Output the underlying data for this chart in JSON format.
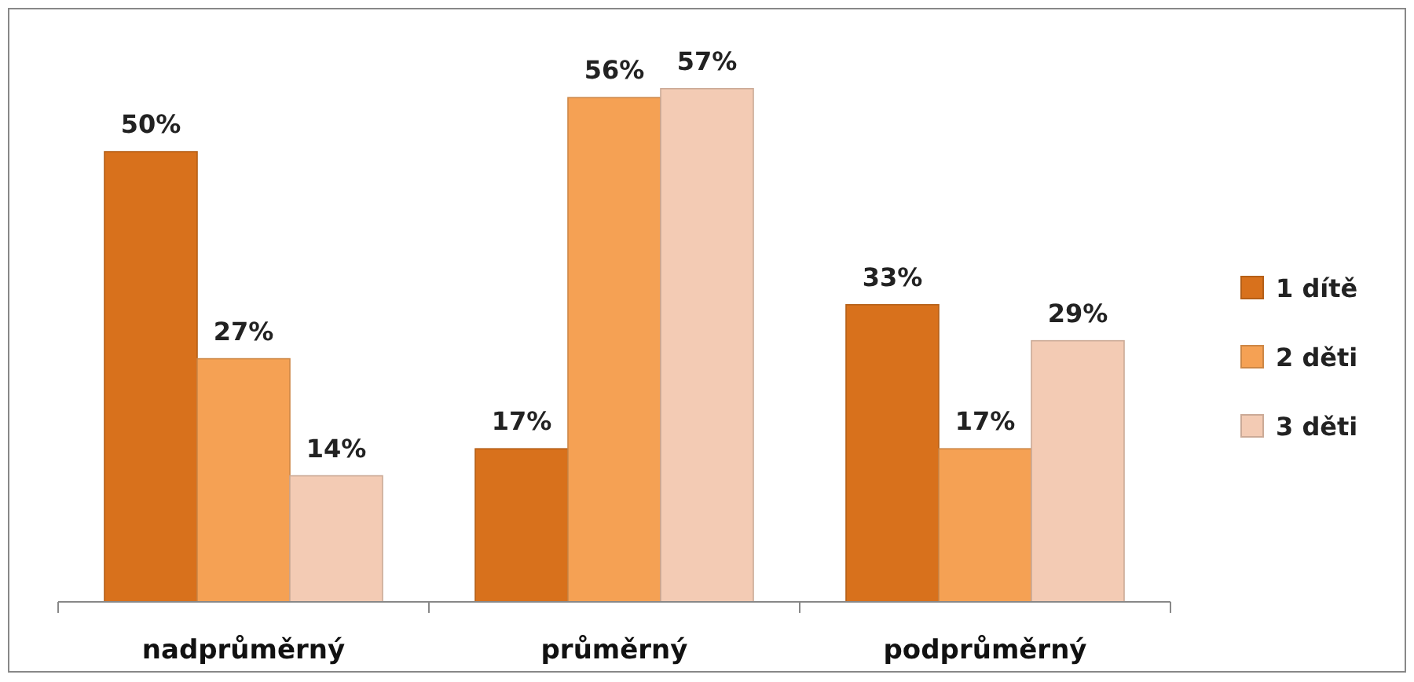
{
  "chart_data": {
    "type": "bar",
    "categories": [
      "nadprůměrný",
      "průměrný",
      "podprůměrný"
    ],
    "series": [
      {
        "name": "1 dítě",
        "color": "#d8711c",
        "values": [
          50,
          17,
          33
        ],
        "value_labels": [
          "50%",
          "17%",
          "33%"
        ]
      },
      {
        "name": "2 děti",
        "color": "#f5a154",
        "values": [
          27,
          56,
          17
        ],
        "value_labels": [
          "27%",
          "56%",
          "17%"
        ]
      },
      {
        "name": "3 děti",
        "color": "#f3cbb4",
        "values": [
          14,
          57,
          29
        ],
        "value_labels": [
          "14%",
          "57%",
          "29%"
        ]
      }
    ],
    "legend": "right"
  }
}
